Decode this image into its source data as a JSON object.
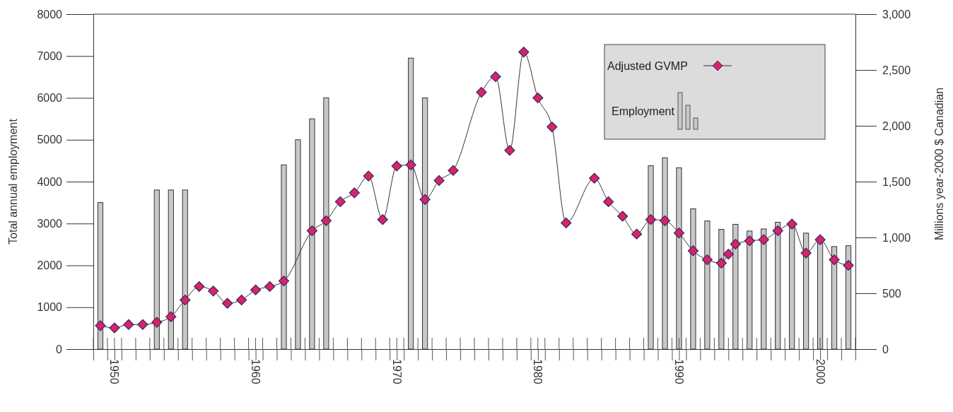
{
  "chart_data": {
    "type": "bar",
    "xlim": [
      1948.5,
      2002.5
    ],
    "xticks": [
      {
        "value": 1948.5,
        "label": null
      },
      {
        "value": 1949.5,
        "label": null
      },
      {
        "value": 1950,
        "label": "1950"
      },
      {
        "value": 1950.5,
        "label": null
      },
      {
        "value": 1951.5,
        "label": null
      },
      {
        "value": 1952.5,
        "label": null
      },
      {
        "value": 1953.5,
        "label": null
      },
      {
        "value": 1954.5,
        "label": null
      },
      {
        "value": 1955.5,
        "label": null
      },
      {
        "value": 1956.5,
        "label": null
      },
      {
        "value": 1957.5,
        "label": null
      },
      {
        "value": 1958.5,
        "label": null
      },
      {
        "value": 1959.5,
        "label": null
      },
      {
        "value": 1960,
        "label": "1960"
      },
      {
        "value": 1960.5,
        "label": null
      },
      {
        "value": 1961.5,
        "label": null
      },
      {
        "value": 1962.5,
        "label": null
      },
      {
        "value": 1963.5,
        "label": null
      },
      {
        "value": 1964.5,
        "label": null
      },
      {
        "value": 1965.5,
        "label": null
      },
      {
        "value": 1966.5,
        "label": null
      },
      {
        "value": 1967.5,
        "label": null
      },
      {
        "value": 1968.5,
        "label": null
      },
      {
        "value": 1969.5,
        "label": null
      },
      {
        "value": 1970,
        "label": "1970"
      },
      {
        "value": 1970.5,
        "label": null
      },
      {
        "value": 1971.5,
        "label": null
      },
      {
        "value": 1972.5,
        "label": null
      },
      {
        "value": 1973.5,
        "label": null
      },
      {
        "value": 1974.5,
        "label": null
      },
      {
        "value": 1975.5,
        "label": null
      },
      {
        "value": 1976.5,
        "label": null
      },
      {
        "value": 1977.5,
        "label": null
      },
      {
        "value": 1978.5,
        "label": null
      },
      {
        "value": 1979.5,
        "label": null
      },
      {
        "value": 1980,
        "label": "1980"
      },
      {
        "value": 1980.5,
        "label": null
      },
      {
        "value": 1981.5,
        "label": null
      },
      {
        "value": 1982.5,
        "label": null
      },
      {
        "value": 1983.5,
        "label": null
      },
      {
        "value": 1984.5,
        "label": null
      },
      {
        "value": 1985.5,
        "label": null
      },
      {
        "value": 1986.5,
        "label": null
      },
      {
        "value": 1987.5,
        "label": null
      },
      {
        "value": 1988.5,
        "label": null
      },
      {
        "value": 1989.5,
        "label": null
      },
      {
        "value": 1990,
        "label": "1990"
      },
      {
        "value": 1990.5,
        "label": null
      },
      {
        "value": 1991.5,
        "label": null
      },
      {
        "value": 1992.5,
        "label": null
      },
      {
        "value": 1993.5,
        "label": null
      },
      {
        "value": 1994.5,
        "label": null
      },
      {
        "value": 1995.5,
        "label": null
      },
      {
        "value": 1996.5,
        "label": null
      },
      {
        "value": 1997.5,
        "label": null
      },
      {
        "value": 1998.5,
        "label": null
      },
      {
        "value": 1999.5,
        "label": null
      },
      {
        "value": 2000,
        "label": "2000"
      },
      {
        "value": 2000.5,
        "label": null
      },
      {
        "value": 2001.5,
        "label": null
      },
      {
        "value": 2002.5,
        "label": null
      }
    ],
    "ylabel": "Total annual employment",
    "y2label": "Millions year-2000 $ Canadian",
    "ylim": [
      0,
      8000
    ],
    "yticks": [
      0,
      1000,
      2000,
      3000,
      4000,
      5000,
      6000,
      7000,
      8000
    ],
    "y2lim": [
      0,
      3000
    ],
    "y2ticks": [
      0,
      500,
      {
        "value": 1000,
        "label": "1,000"
      },
      {
        "value": 1500,
        "label": "1,500"
      },
      {
        "value": 2000,
        "label": "2,000"
      },
      {
        "value": 2500,
        "label": "2,500"
      },
      {
        "value": 3000,
        "label": "3,000"
      }
    ],
    "grid": false,
    "legend": "top right",
    "marker": "diamond",
    "line_style": "solid",
    "series": [
      {
        "name": "Adjusted GVMP",
        "type": "line",
        "axis": "y2",
        "color": "#d6246a",
        "x": [
          1949,
          1950,
          1951,
          1952,
          1953,
          1954,
          1955,
          1956,
          1957,
          1958,
          1959,
          1960,
          1961,
          1962,
          1964,
          1965,
          1966,
          1967,
          1968,
          1969,
          1970,
          1971,
          1972,
          1973,
          1974,
          1976,
          1977,
          1978,
          1979,
          1980,
          1981,
          1982,
          1984,
          1985,
          1986,
          1987,
          1988,
          1989,
          1990,
          1991,
          1992,
          1993,
          1993.5,
          1994,
          1995,
          1996,
          1997,
          1998,
          1999,
          2000,
          2001,
          2002
        ],
        "values": [
          210,
          190,
          220,
          220,
          240,
          290,
          440,
          560,
          520,
          410,
          440,
          530,
          560,
          610,
          1060,
          1150,
          1320,
          1400,
          1550,
          1160,
          1640,
          1650,
          1340,
          1510,
          1600,
          2300,
          2440,
          1780,
          2660,
          2250,
          1990,
          1130,
          1530,
          1320,
          1190,
          1030,
          1160,
          1150,
          1040,
          880,
          800,
          770,
          850,
          940,
          970,
          980,
          1060,
          1120,
          860,
          980,
          800,
          750
        ]
      },
      {
        "name": "Employment",
        "type": "bar",
        "color": "#c8c8c8",
        "x": [
          1949,
          1953,
          1954,
          1955,
          1962,
          1963,
          1964,
          1965,
          1971,
          1972,
          1988,
          1989,
          1990,
          1991,
          1992,
          1993,
          1994,
          1995,
          1996,
          1997,
          1998,
          1999,
          2000,
          2001,
          2002
        ],
        "values": [
          3500,
          3800,
          3800,
          3800,
          4400,
          5000,
          5500,
          6000,
          6950,
          6000,
          4380,
          4570,
          4330,
          3350,
          3060,
          2860,
          2980,
          2820,
          2870,
          3030,
          3000,
          2770,
          2680,
          2450,
          2470
        ]
      }
    ]
  }
}
